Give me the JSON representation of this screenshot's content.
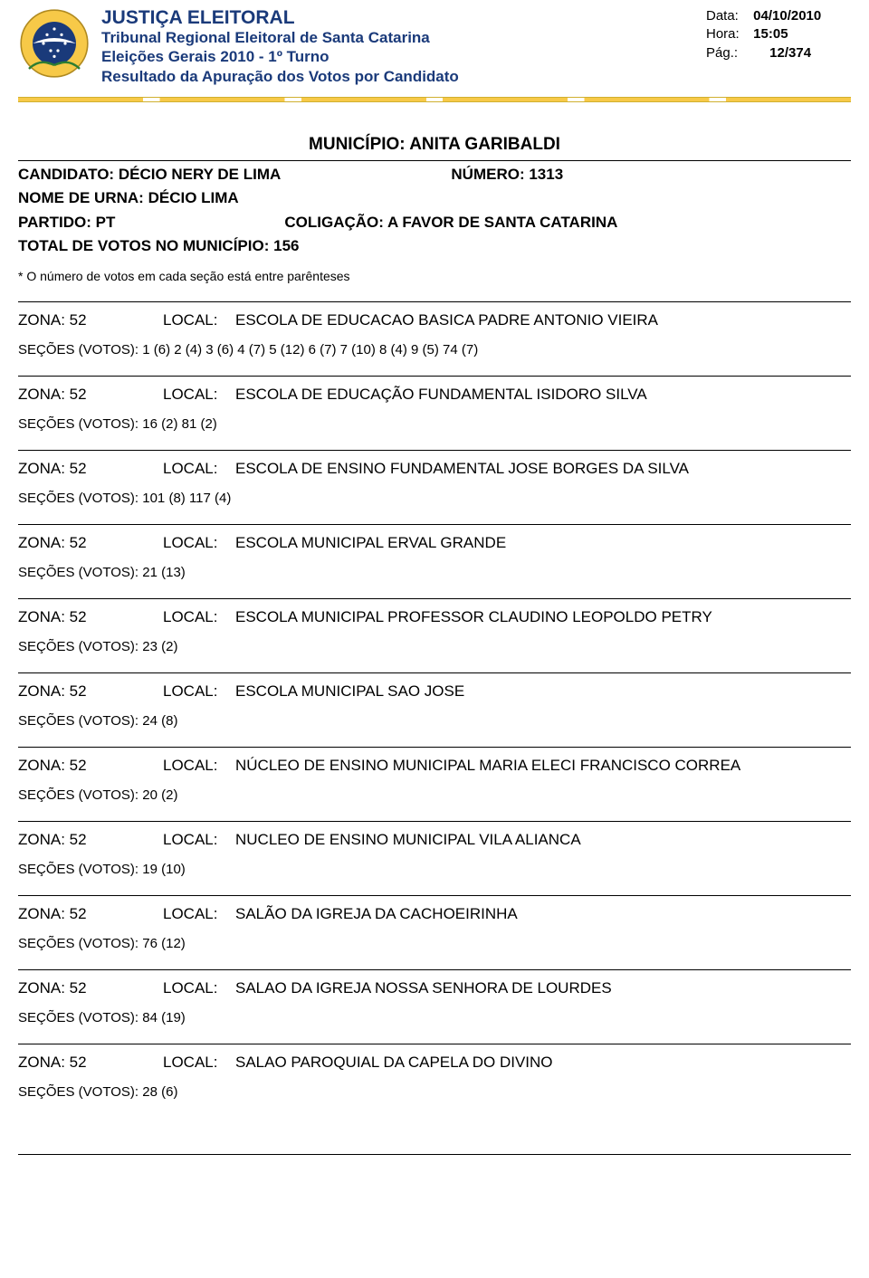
{
  "header": {
    "title": "JUSTIÇA ELEITORAL",
    "line2": "Tribunal Regional Eleitoral de Santa Catarina",
    "line3": "Eleições Gerais 2010 - 1º Turno",
    "line4": "Resultado da Apuração dos Votos por Candidato",
    "meta": {
      "data_label": "Data:",
      "data_value": "04/10/2010",
      "hora_label": "Hora:",
      "hora_value": "15:05",
      "pag_label": "Pág.:",
      "pag_value": "12/374"
    },
    "logo_colors": {
      "outer": "#f7c948",
      "blue": "#1a3a7a",
      "green": "#2e7d32"
    }
  },
  "municipio_label": "MUNICÍPIO:",
  "municipio": "ANITA GARIBALDI",
  "candidate": {
    "candidato_label": "CANDIDATO:",
    "candidato": "DÉCIO NERY DE LIMA",
    "numero_label": "NÚMERO:",
    "numero": "1313",
    "urna_label": "NOME DE URNA:",
    "urna": "DÉCIO LIMA",
    "partido_label": "PARTIDO:",
    "partido": "PT",
    "colig_label": "COLIGAÇÃO:",
    "colig": "A FAVOR DE SANTA CATARINA",
    "total_label": "TOTAL DE VOTOS NO MUNICÍPIO:",
    "total": "156"
  },
  "footnote": "* O número de votos em cada seção está entre parênteses",
  "zona_label": "ZONA:",
  "local_label": "LOCAL:",
  "secoes_label": "SEÇÕES (VOTOS):",
  "zones": [
    {
      "zona": "52",
      "local": "ESCOLA DE EDUCACAO BASICA PADRE ANTONIO VIEIRA",
      "secoes": "1 (6) 2 (4) 3 (6) 4 (7) 5 (12) 6 (7) 7 (10) 8 (4) 9 (5) 74 (7)"
    },
    {
      "zona": "52",
      "local": "ESCOLA DE EDUCAÇÃO FUNDAMENTAL ISIDORO SILVA",
      "secoes": "16 (2) 81 (2)"
    },
    {
      "zona": "52",
      "local": "ESCOLA DE ENSINO FUNDAMENTAL JOSE BORGES DA SILVA",
      "secoes": "101 (8) 117 (4)"
    },
    {
      "zona": "52",
      "local": "ESCOLA MUNICIPAL ERVAL GRANDE",
      "secoes": "21 (13)"
    },
    {
      "zona": "52",
      "local": "ESCOLA MUNICIPAL PROFESSOR CLAUDINO LEOPOLDO PETRY",
      "secoes": "23 (2)"
    },
    {
      "zona": "52",
      "local": "ESCOLA MUNICIPAL SAO JOSE",
      "secoes": "24 (8)"
    },
    {
      "zona": "52",
      "local": "NÚCLEO DE ENSINO MUNICIPAL MARIA ELECI FRANCISCO CORREA",
      "secoes": "20 (2)"
    },
    {
      "zona": "52",
      "local": "NUCLEO DE ENSINO MUNICIPAL VILA ALIANCA",
      "secoes": "19 (10)"
    },
    {
      "zona": "52",
      "local": "SALÃO DA IGREJA DA CACHOEIRINHA",
      "secoes": "76 (12)"
    },
    {
      "zona": "52",
      "local": "SALAO DA IGREJA NOSSA SENHORA DE LOURDES",
      "secoes": "84 (19)"
    },
    {
      "zona": "52",
      "local": "SALAO PAROQUIAL DA CAPELA DO DIVINO",
      "secoes": "28 (6)"
    }
  ]
}
